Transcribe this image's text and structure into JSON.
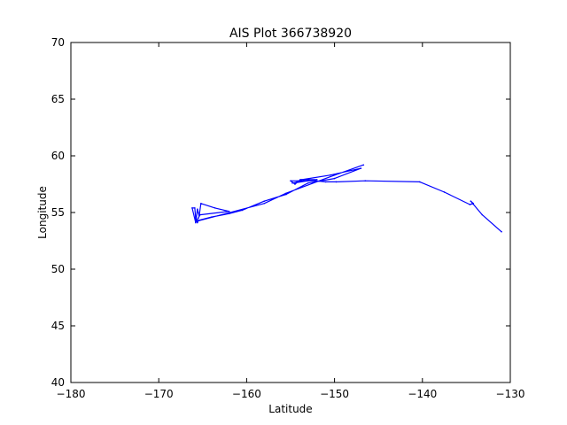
{
  "chart_data": {
    "type": "line",
    "title": "AIS Plot 366738920",
    "xlabel": "Latitude",
    "ylabel": "Longitude",
    "xlim": [
      -180,
      -130
    ],
    "ylim": [
      40,
      70
    ],
    "x_ticks": [
      "−180",
      "−170",
      "−160",
      "−150",
      "−140",
      "−130"
    ],
    "y_ticks": [
      "40",
      "45",
      "50",
      "55",
      "60",
      "65",
      "70"
    ],
    "grid": false,
    "line_color": "#0000ff",
    "series": [
      {
        "x": [
          -131.0,
          -133.2,
          -134.5,
          -134.2,
          -134.6,
          -137.5,
          -140.3,
          -146.5,
          -149.8,
          -151.0,
          -152.2,
          -153.5,
          -154.8,
          -152.0,
          -153.9,
          -154.5,
          -155.0,
          -153.0,
          -154.6,
          -153.7,
          -150.5,
          -147.0,
          -150.0,
          -153.0,
          -155.5,
          -158.0,
          -160.5,
          -162.0,
          -164.0,
          -165.5,
          -165.6,
          -165.8,
          -165.9,
          -166.2,
          -165.8,
          -165.6,
          -165.4,
          -165.2,
          -163.6,
          -162.0,
          -165.3,
          -165.5,
          -165.8,
          -158.0,
          -155.5,
          -150.0,
          -146.7
        ],
        "y": [
          53.3,
          54.8,
          56.0,
          55.8,
          55.7,
          56.8,
          57.7,
          57.8,
          57.7,
          57.7,
          57.8,
          57.8,
          57.6,
          57.9,
          57.9,
          57.5,
          57.8,
          57.8,
          57.6,
          57.9,
          58.3,
          58.9,
          58.0,
          57.6,
          56.6,
          56.0,
          55.2,
          54.9,
          54.6,
          54.3,
          54.1,
          54.4,
          55.4,
          55.4,
          54.1,
          55.3,
          54.7,
          55.8,
          55.4,
          55.1,
          54.8,
          54.5,
          54.2,
          55.8,
          56.7,
          58.3,
          59.2
        ]
      }
    ]
  }
}
